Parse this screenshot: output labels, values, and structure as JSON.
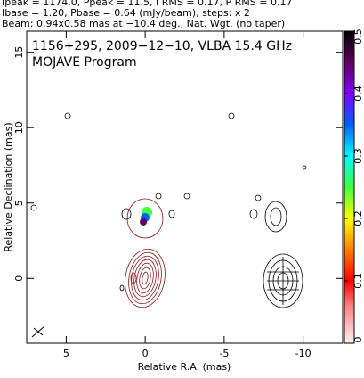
{
  "chart_data": {
    "type": "contour",
    "header": [
      "Ipeak = 1174.0, Ppeak = 11.5, I RMS = 0.17, P RMS = 0.17",
      "Ibase = 1.20, Pbase = 0.64 (mJy/beam), steps: x 2",
      "Beam: 0.94x0.58 mas at −10.4 deg., Nat. Wgt. (no taper)"
    ],
    "title": "1156+295, 2009−12−10, VLBA 15.4 GHz",
    "subtitle": "MOJAVE Program",
    "xlabel": "Relative R.A. (mas)",
    "ylabel": "Relative Declination (mas)",
    "xlim": [
      7.5,
      -12.5
    ],
    "xticks": [
      5,
      0,
      -5,
      -10
    ],
    "ylim": [
      -4.3,
      16.4
    ],
    "yticks": [
      0,
      5,
      10,
      15
    ],
    "colorbar_lim": [
      0,
      0.5
    ],
    "colorbar_ticks": [
      0,
      0.1,
      0.2,
      0.3,
      0.4,
      0.5
    ]
  }
}
